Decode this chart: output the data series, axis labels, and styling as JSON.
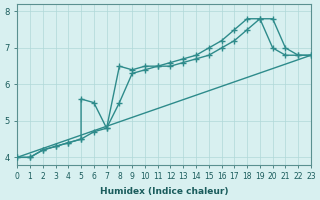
{
  "xlabel": "Humidex (Indice chaleur)",
  "ylabel": "",
  "bg_color": "#d8f0f0",
  "line_color": "#2e8b8b",
  "xlim": [
    0,
    23
  ],
  "ylim": [
    3.8,
    8.2
  ],
  "yticks": [
    4,
    5,
    6,
    7,
    8
  ],
  "xticks": [
    0,
    1,
    2,
    3,
    4,
    5,
    6,
    7,
    8,
    9,
    10,
    11,
    12,
    13,
    14,
    15,
    16,
    17,
    18,
    19,
    20,
    21,
    22,
    23
  ],
  "line1_x": [
    0,
    1,
    2,
    3,
    4,
    5,
    5,
    6,
    7,
    8,
    9,
    10,
    11,
    12,
    13,
    14,
    15,
    16,
    17,
    18,
    19,
    20,
    21,
    22,
    23
  ],
  "line1_y": [
    4.0,
    4.0,
    4.2,
    4.3,
    4.4,
    4.5,
    5.6,
    5.5,
    4.8,
    6.5,
    6.4,
    6.5,
    6.5,
    6.6,
    6.7,
    6.8,
    7.0,
    7.2,
    7.5,
    7.8,
    7.8,
    7.0,
    6.8,
    6.8,
    6.8
  ],
  "line2_x": [
    0,
    1,
    2,
    3,
    4,
    5,
    6,
    7,
    8,
    9,
    10,
    11,
    12,
    13,
    14,
    15,
    16,
    17,
    18,
    19,
    20,
    21,
    22,
    23
  ],
  "line2_y": [
    4.0,
    4.0,
    4.2,
    4.3,
    4.4,
    4.5,
    4.7,
    4.8,
    5.5,
    6.3,
    6.4,
    6.5,
    6.5,
    6.6,
    6.7,
    6.8,
    7.0,
    7.2,
    7.5,
    7.8,
    7.8,
    7.0,
    6.8,
    6.8
  ],
  "line3_x": [
    0,
    23
  ],
  "line3_y": [
    4.0,
    6.8
  ]
}
